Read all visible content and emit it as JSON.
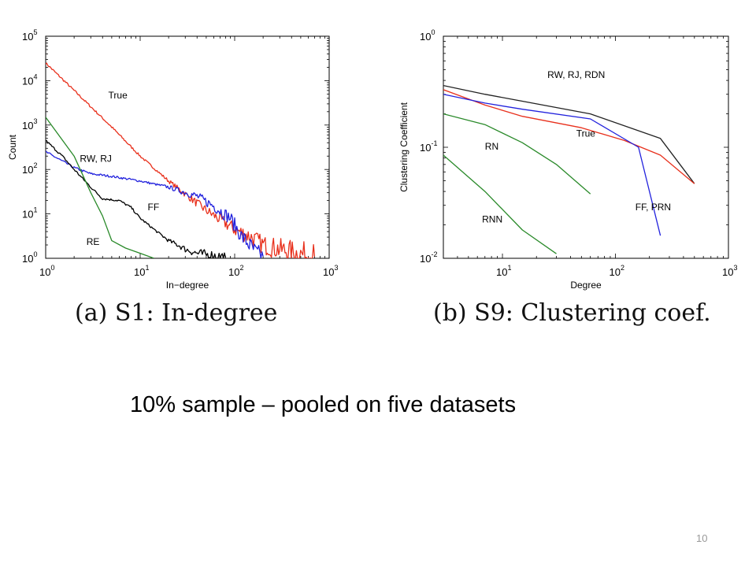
{
  "chart_data": [
    {
      "type": "line",
      "title": "",
      "xlabel": "In−degree",
      "ylabel": "Count",
      "xscale": "log",
      "yscale": "log",
      "xlim": [
        1,
        1000
      ],
      "ylim": [
        1,
        100000
      ],
      "xticks": [
        {
          "base": "10",
          "exp": "0",
          "value": 1
        },
        {
          "base": "10",
          "exp": "1",
          "value": 10
        },
        {
          "base": "10",
          "exp": "2",
          "value": 100
        },
        {
          "base": "10",
          "exp": "3",
          "value": 1000
        }
      ],
      "yticks": [
        {
          "base": "10",
          "exp": "0",
          "value": 1
        },
        {
          "base": "10",
          "exp": "1",
          "value": 10
        },
        {
          "base": "10",
          "exp": "2",
          "value": 100
        },
        {
          "base": "10",
          "exp": "3",
          "value": 1000
        },
        {
          "base": "10",
          "exp": "4",
          "value": 10000
        },
        {
          "base": "10",
          "exp": "5",
          "value": 100000
        }
      ],
      "grid": false,
      "series": [
        {
          "name": "True",
          "color": "#e8301c",
          "noisy": true,
          "label_at": [
            4.6,
            4000
          ],
          "x": [
            1,
            2,
            5,
            10,
            20,
            50,
            100,
            150,
            200,
            300,
            450,
            700
          ],
          "y": [
            25000,
            6000,
            900,
            200,
            55,
            12,
            4.5,
            3,
            2,
            1.6,
            1.3,
            1.1
          ]
        },
        {
          "name": "RW, RJ",
          "color": "#2222dd",
          "noisy": true,
          "label_at": [
            2.3,
            150
          ],
          "x": [
            1,
            2,
            3,
            5,
            10,
            20,
            40,
            60,
            90,
            120,
            150,
            170,
            200
          ],
          "y": [
            250,
            110,
            80,
            70,
            55,
            40,
            25,
            15,
            8,
            3,
            1.8,
            1.3,
            1.1
          ]
        },
        {
          "name": "FF",
          "color": "#000000",
          "noisy": true,
          "label_at": [
            12,
            12
          ],
          "x": [
            1,
            1.5,
            2,
            3,
            4,
            6,
            8,
            10,
            15,
            20,
            25,
            30,
            40,
            60,
            80
          ],
          "y": [
            450,
            200,
            100,
            40,
            22,
            20,
            14,
            8,
            4,
            2.5,
            2,
            1.6,
            1.3,
            1.15,
            1.05
          ]
        },
        {
          "name": "RE",
          "color": "#2a8a2a",
          "noisy": false,
          "label_at": [
            2.7,
            2
          ],
          "x": [
            1,
            2,
            3,
            4,
            5,
            7,
            10,
            14
          ],
          "y": [
            1500,
            200,
            30,
            9,
            2.5,
            1.7,
            1.3,
            1.0
          ]
        }
      ]
    },
    {
      "type": "line",
      "title": "",
      "xlabel": "Degree",
      "ylabel": "Clustering Coefficient",
      "xscale": "log",
      "yscale": "log",
      "xlim": [
        3,
        1000
      ],
      "ylim": [
        0.01,
        1
      ],
      "xticks": [
        {
          "base": "10",
          "exp": "1",
          "value": 10
        },
        {
          "base": "10",
          "exp": "2",
          "value": 100
        },
        {
          "base": "10",
          "exp": "3",
          "value": 1000
        }
      ],
      "yticks": [
        {
          "base": "10",
          "exp": "-2",
          "value": 0.01
        },
        {
          "base": "10",
          "exp": "-1",
          "value": 0.1
        },
        {
          "base": "10",
          "exp": "0",
          "value": 1
        }
      ],
      "grid": false,
      "series": [
        {
          "name": "RW, RJ, RDN",
          "color": "#222222",
          "label_at": [
            25,
            0.42
          ],
          "x": [
            3,
            7,
            15,
            60,
            250,
            500
          ],
          "y": [
            0.36,
            0.3,
            0.26,
            0.2,
            0.12,
            0.047
          ]
        },
        {
          "name": "True",
          "color": "#e8301c",
          "label_at": [
            45,
            0.125
          ],
          "x": [
            3,
            7,
            15,
            50,
            120,
            250,
            500
          ],
          "y": [
            0.33,
            0.24,
            0.19,
            0.15,
            0.115,
            0.085,
            0.047
          ]
        },
        {
          "name": "FF, PRN",
          "color": "#2222dd",
          "label_at": [
            150,
            0.027
          ],
          "x": [
            3,
            7,
            15,
            60,
            160,
            250
          ],
          "y": [
            0.3,
            0.25,
            0.22,
            0.18,
            0.1,
            0.016
          ]
        },
        {
          "name": "RN",
          "color": "#2a8a2a",
          "label_at": [
            7,
            0.095
          ],
          "x": [
            3,
            7,
            15,
            30,
            60
          ],
          "y": [
            0.2,
            0.16,
            0.11,
            0.07,
            0.038
          ]
        },
        {
          "name": "RNN",
          "color": "#2a8a2a",
          "label_at": [
            6.6,
            0.021
          ],
          "x": [
            3,
            7,
            15,
            30
          ],
          "y": [
            0.085,
            0.04,
            0.018,
            0.011
          ]
        }
      ]
    }
  ],
  "captions": {
    "a": "(a) S1:  In-degree",
    "b": "(b) S9:  Clustering coef."
  },
  "subtitle": "10% sample – pooled on five datasets",
  "page_number": "10"
}
